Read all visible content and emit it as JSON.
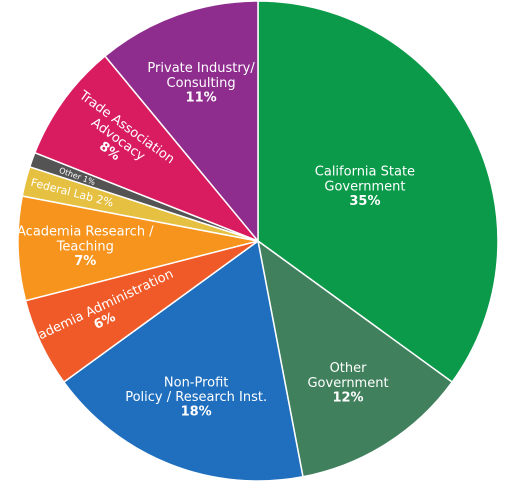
{
  "chart_data": {
    "type": "pie",
    "categories": [
      "California State\nGovernment",
      "Other\nGovernment",
      "Non-Profit\nPolicy / Research Inst.",
      "Academia Administration",
      "Academia Research /\nTeaching",
      "Federal Lab",
      "Other",
      "Trade Association\nAdvocacy",
      "Private Industry/\nConsulting"
    ],
    "values": [
      35,
      12,
      18,
      6,
      7,
      2,
      1,
      8,
      11
    ],
    "value_labels": [
      "35%",
      "12%",
      "18%",
      "6%",
      "7%",
      "2%",
      "1%",
      "8%",
      "11%"
    ],
    "colors": [
      "#0b9a4a",
      "#41805d",
      "#1f6fbe",
      "#f05a28",
      "#f6941e",
      "#e6c040",
      "#545454",
      "#d81c5f",
      "#8f2d8f"
    ]
  }
}
